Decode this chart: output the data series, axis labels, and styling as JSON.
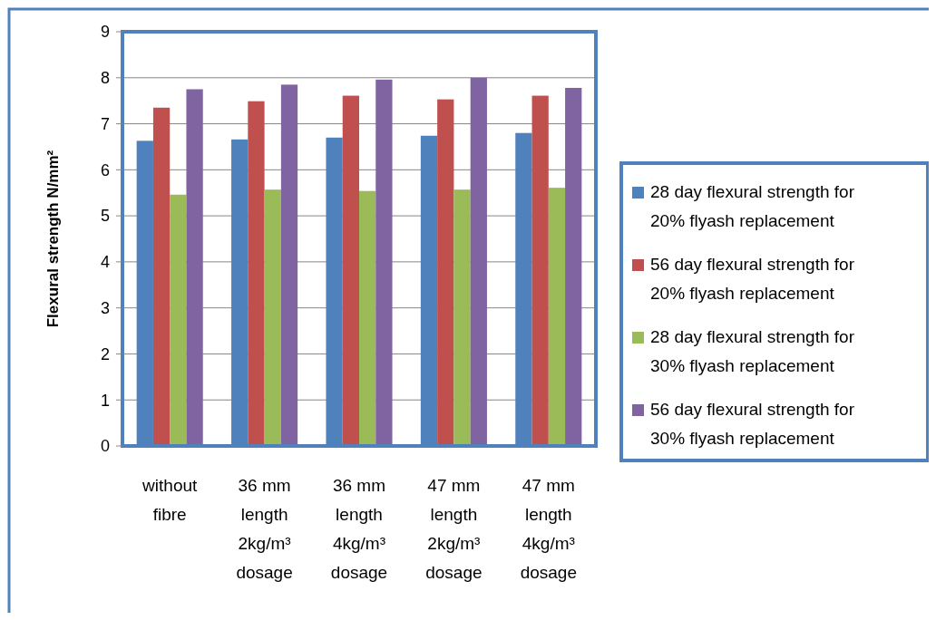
{
  "chart_data": {
    "type": "bar",
    "ylabel": "Flexural strength N/mm²",
    "categories": [
      "without fibre",
      "36 mm length 2kg/m³ dosage",
      "36 mm length 4kg/m³ dosage",
      "47 mm length 2kg/m³ dosage",
      "47 mm length 4kg/m³ dosage"
    ],
    "series": [
      {
        "name": "28 day flexural strength for 20% flyash replacement",
        "color": "#4f81bd",
        "values": [
          6.63,
          6.66,
          6.7,
          6.74,
          6.8
        ]
      },
      {
        "name": "56 day flexural strength for 20% flyash replacement",
        "color": "#c0504d",
        "values": [
          7.35,
          7.49,
          7.61,
          7.53,
          7.61
        ]
      },
      {
        "name": "28 day flexural strength for 30% flyash replacement",
        "color": "#9bbb59",
        "values": [
          5.46,
          5.57,
          5.54,
          5.57,
          5.61
        ]
      },
      {
        "name": "56 day flexural strength for 30% flyash replacement",
        "color": "#8064a2",
        "values": [
          7.75,
          7.85,
          7.96,
          8.0,
          7.78
        ]
      }
    ],
    "ylim": [
      0,
      9
    ],
    "yticks": [
      0,
      1,
      2,
      3,
      4,
      5,
      6,
      7,
      8,
      9
    ],
    "grid": "y",
    "legend": "right"
  }
}
